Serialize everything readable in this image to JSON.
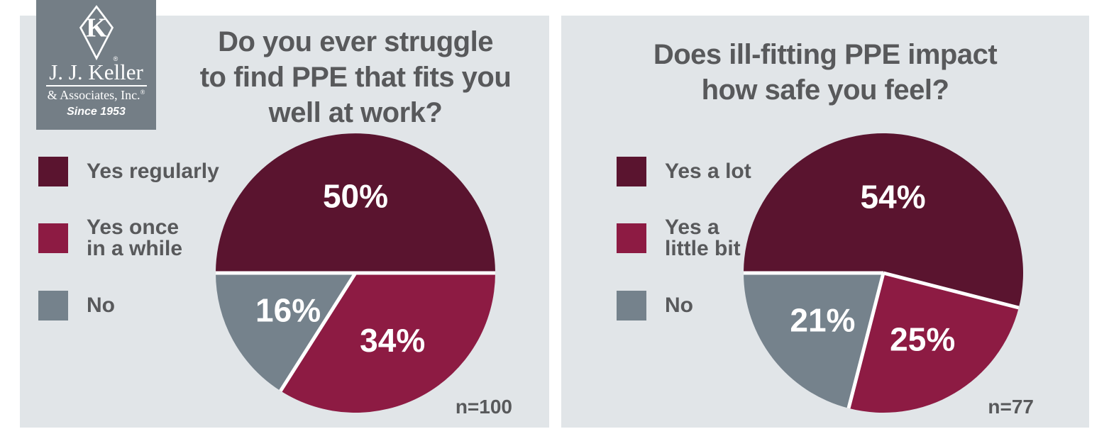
{
  "colors": {
    "page_bg": "#ffffff",
    "panel_bg": "#e1e5e8",
    "maroon": "#5a142f",
    "crimson": "#8d1b43",
    "slate": "#75828c",
    "text_gray": "#58595b",
    "logo_bg": "#747e86",
    "label_white": "#ffffff"
  },
  "logo": {
    "monogram": "K",
    "registered": "®",
    "company": "J. J. Keller",
    "associates": "& Associates, Inc.",
    "since": "Since 1953"
  },
  "chart_data": [
    {
      "type": "pie",
      "title": "Do you ever struggle to find PPE that fits you well at work?",
      "title_lines": [
        "Do you ever struggle",
        "to find PPE that fits you",
        "well at work?"
      ],
      "sample_label": "n=100",
      "start_angle_deg": 180,
      "direction": "clockwise",
      "legend_position": "left",
      "slices": [
        {
          "label": "Yes regularly",
          "legend_lines": [
            "Yes regularly"
          ],
          "value": 50,
          "pct_label": "50%",
          "color_key": "maroon"
        },
        {
          "label": "Yes once in a while",
          "legend_lines": [
            "Yes once",
            "in a while"
          ],
          "value": 34,
          "pct_label": "34%",
          "color_key": "crimson"
        },
        {
          "label": "No",
          "legend_lines": [
            "No"
          ],
          "value": 16,
          "pct_label": "16%",
          "color_key": "slate"
        }
      ]
    },
    {
      "type": "pie",
      "title": "Does ill-fitting PPE impact how safe you feel?",
      "title_lines": [
        "Does ill-fitting PPE impact",
        "how safe you feel?"
      ],
      "sample_label": "n=77",
      "start_angle_deg": 180,
      "direction": "clockwise",
      "legend_position": "left",
      "slices": [
        {
          "label": "Yes a lot",
          "legend_lines": [
            "Yes a lot"
          ],
          "value": 54,
          "pct_label": "54%",
          "color_key": "maroon"
        },
        {
          "label": "Yes a little bit",
          "legend_lines": [
            "Yes a",
            "little bit"
          ],
          "value": 25,
          "pct_label": "25%",
          "color_key": "crimson"
        },
        {
          "label": "No",
          "legend_lines": [
            "No"
          ],
          "value": 21,
          "pct_label": "21%",
          "color_key": "slate"
        }
      ]
    }
  ]
}
